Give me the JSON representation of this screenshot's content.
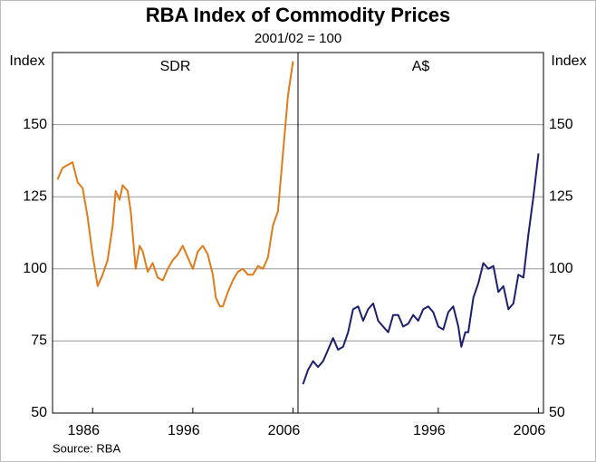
{
  "title": "RBA Index of Commodity Prices",
  "subtitle": "2001/02 = 100",
  "source": "Source: RBA",
  "chart_data": [
    {
      "type": "line",
      "panel_label": "SDR",
      "y_label": "Index",
      "axis_side": "left",
      "xlim": [
        1982,
        2006.5
      ],
      "xticks": [
        1986,
        1996,
        2006
      ],
      "ylim": [
        50,
        175
      ],
      "yticks": [
        50,
        75,
        100,
        125,
        150
      ],
      "grid": true,
      "x": [
        1982.5,
        1983,
        1984,
        1984.5,
        1985,
        1985.5,
        1986,
        1986.5,
        1987,
        1987.5,
        1988,
        1988.3,
        1988.7,
        1989,
        1989.5,
        1989.8,
        1990,
        1990.3,
        1990.7,
        1991,
        1991.5,
        1992,
        1992.5,
        1993,
        1993.5,
        1994,
        1994.5,
        1995,
        1995.5,
        1996,
        1996.5,
        1997,
        1997.5,
        1998,
        1998.3,
        1998.7,
        1999,
        1999.5,
        2000,
        2000.5,
        2001,
        2001.5,
        2002,
        2002.5,
        2003,
        2003.5,
        2004,
        2004.5,
        2005,
        2005.5,
        2006
      ],
      "series": [
        {
          "name": "SDR",
          "color": "#e07b1a",
          "values": [
            131,
            135,
            137,
            130,
            128,
            118,
            105,
            94,
            98,
            103,
            115,
            127,
            124,
            129,
            127,
            120,
            112,
            100,
            108,
            106,
            99,
            102,
            97,
            96,
            100,
            103,
            105,
            108,
            104,
            100,
            106,
            108,
            105,
            98,
            90,
            87,
            87,
            92,
            96,
            99,
            100,
            98,
            98,
            101,
            100,
            104,
            115,
            120,
            140,
            160,
            172
          ]
        }
      ]
    },
    {
      "type": "line",
      "panel_label": "A$",
      "y_label": "Index",
      "axis_side": "right",
      "xlim": [
        1982,
        2006.5
      ],
      "xticks": [
        1996,
        2006
      ],
      "ylim": [
        50,
        175
      ],
      "yticks": [
        50,
        75,
        100,
        125,
        150
      ],
      "grid": true,
      "x": [
        1982.5,
        1983,
        1983.5,
        1984,
        1984.5,
        1985,
        1985.5,
        1986,
        1986.5,
        1987,
        1987.5,
        1988,
        1988.5,
        1989,
        1989.5,
        1990,
        1990.5,
        1991,
        1991.5,
        1992,
        1992.5,
        1993,
        1993.5,
        1994,
        1994.5,
        1995,
        1995.5,
        1996,
        1996.5,
        1997,
        1997.5,
        1998,
        1998.3,
        1998.7,
        1999,
        1999.5,
        2000,
        2000.5,
        2001,
        2001.5,
        2002,
        2002.5,
        2003,
        2003.5,
        2004,
        2004.5,
        2005,
        2005.5,
        2006
      ],
      "series": [
        {
          "name": "A$",
          "color": "#1b1f6e",
          "values": [
            60,
            65,
            68,
            66,
            68,
            72,
            76,
            72,
            73,
            78,
            86,
            87,
            82,
            86,
            88,
            82,
            80,
            78,
            84,
            84,
            80,
            81,
            84,
            82,
            86,
            87,
            85,
            80,
            79,
            85,
            87,
            80,
            73,
            78,
            78,
            90,
            95,
            102,
            100,
            101,
            92,
            94,
            86,
            88,
            98,
            97,
            112,
            125,
            140
          ]
        }
      ]
    }
  ]
}
